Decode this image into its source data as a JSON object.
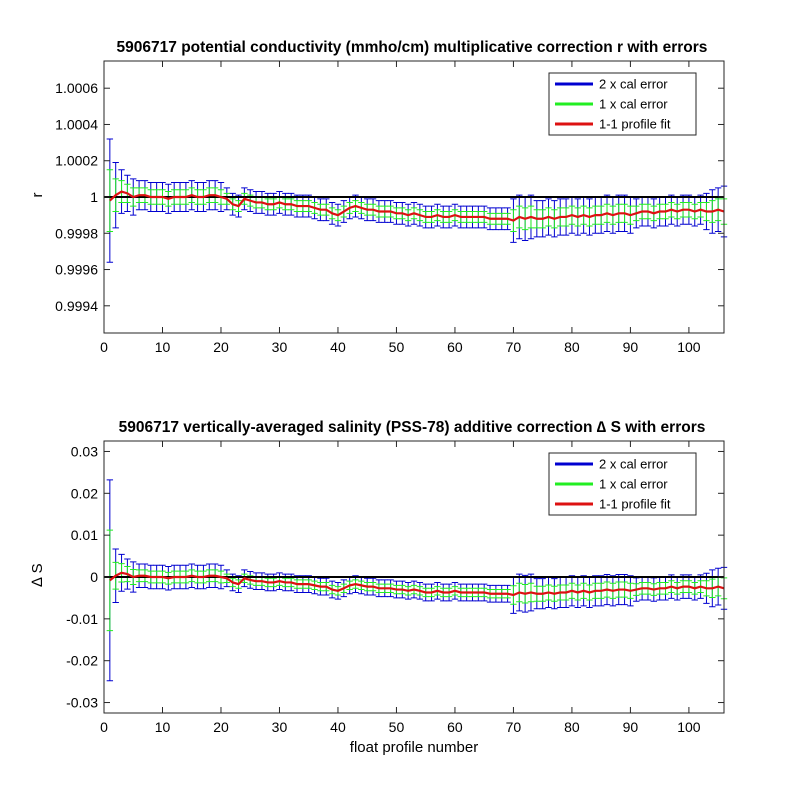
{
  "figure": {
    "xlabel": "float profile number",
    "legend_position": "top-right"
  },
  "chart_data": [
    {
      "type": "line",
      "title": "5906717 potential conductivity (mmho/cm) multiplicative correction r with errors",
      "ylabel": "r",
      "xlabel": "",
      "xlim": [
        0,
        106
      ],
      "ylim": [
        0.99925,
        1.00075
      ],
      "xticks": [
        0,
        10,
        20,
        30,
        40,
        50,
        60,
        70,
        80,
        90,
        100
      ],
      "xtick_labels": [
        "0",
        "10",
        "20",
        "30",
        "40",
        "50",
        "60",
        "70",
        "80",
        "90",
        "100"
      ],
      "yticks": [
        0.9994,
        0.9996,
        0.9998,
        1.0,
        1.0002,
        1.0004,
        1.0006
      ],
      "ytick_labels": [
        "0.9994",
        "0.9996",
        "0.9998",
        "1",
        "1.0002",
        "1.0004",
        "1.0006"
      ],
      "reference_line": 1.0,
      "grid": false,
      "legend": {
        "position": "top-right",
        "entries": [
          {
            "name": "2 x cal error",
            "color": "#0000d0"
          },
          {
            "name": "1 x cal error",
            "color": "#22ee22"
          },
          {
            "name": "1-1 profile fit",
            "color": "#dd1111"
          }
        ]
      },
      "x": [
        1,
        2,
        3,
        4,
        5,
        6,
        7,
        8,
        9,
        10,
        11,
        12,
        13,
        14,
        15,
        16,
        17,
        18,
        19,
        20,
        21,
        22,
        23,
        24,
        25,
        26,
        27,
        28,
        29,
        30,
        31,
        32,
        33,
        34,
        35,
        36,
        37,
        38,
        39,
        40,
        41,
        42,
        43,
        44,
        45,
        46,
        47,
        48,
        49,
        50,
        51,
        52,
        53,
        54,
        55,
        56,
        57,
        58,
        59,
        60,
        61,
        62,
        63,
        64,
        65,
        66,
        67,
        68,
        69,
        70,
        71,
        72,
        73,
        74,
        75,
        76,
        77,
        78,
        79,
        80,
        81,
        82,
        83,
        84,
        85,
        86,
        87,
        88,
        89,
        90,
        91,
        92,
        93,
        94,
        95,
        96,
        97,
        98,
        99,
        100,
        101,
        102,
        103,
        104,
        105,
        106
      ],
      "series": [
        {
          "name": "1-1 profile fit",
          "color": "#dd1111",
          "values": [
            0.99998,
            1.00001,
            1.00003,
            1.00002,
            1.0,
            1.00001,
            1.00001,
            1.0,
            1.0,
            1.0,
            0.99999,
            1.0,
            1.0,
            1.0,
            1.00001,
            1.0,
            1.0,
            1.00001,
            1.00001,
            1.0,
            0.99999,
            0.99996,
            0.99995,
            0.99999,
            0.99998,
            0.99997,
            0.99997,
            0.99996,
            0.99996,
            0.99997,
            0.99996,
            0.99996,
            0.99995,
            0.99995,
            0.99995,
            0.99994,
            0.99993,
            0.99993,
            0.99991,
            0.9999,
            0.99992,
            0.99994,
            0.99995,
            0.99994,
            0.99993,
            0.99993,
            0.99992,
            0.99992,
            0.99992,
            0.99991,
            0.99991,
            0.9999,
            0.99991,
            0.9999,
            0.99989,
            0.99989,
            0.9999,
            0.99989,
            0.99989,
            0.9999,
            0.99989,
            0.99989,
            0.99989,
            0.99989,
            0.99989,
            0.99988,
            0.99988,
            0.99988,
            0.99988,
            0.99987,
            0.99989,
            0.99988,
            0.99989,
            0.99988,
            0.99988,
            0.99989,
            0.99988,
            0.99989,
            0.99989,
            0.9999,
            0.99989,
            0.9999,
            0.99989,
            0.9999,
            0.9999,
            0.99991,
            0.9999,
            0.99991,
            0.99991,
            0.9999,
            0.99991,
            0.99992,
            0.99992,
            0.99991,
            0.99992,
            0.99992,
            0.99993,
            0.99992,
            0.99993,
            0.99993,
            0.99992,
            0.99993,
            0.99992,
            0.99992,
            0.99993,
            0.99992
          ]
        },
        {
          "name": "1 x cal error",
          "color": "#22ee22",
          "values": [
            0.00017,
            9e-05,
            6e-05,
            5e-05,
            5e-05,
            4e-05,
            4e-05,
            4e-05,
            4e-05,
            4e-05,
            4e-05,
            4e-05,
            4e-05,
            4e-05,
            4e-05,
            4e-05,
            4e-05,
            4e-05,
            4e-05,
            4e-05,
            3e-05,
            3e-05,
            3e-05,
            3e-05,
            3e-05,
            3e-05,
            3e-05,
            3e-05,
            3e-05,
            3e-05,
            3e-05,
            3e-05,
            3e-05,
            3e-05,
            3e-05,
            3e-05,
            3e-05,
            3e-05,
            3e-05,
            3e-05,
            3e-05,
            3e-05,
            3e-05,
            3e-05,
            3e-05,
            3e-05,
            3e-05,
            3e-05,
            3e-05,
            3e-05,
            3e-05,
            3e-05,
            3e-05,
            3e-05,
            3e-05,
            3e-05,
            3e-05,
            3e-05,
            3e-05,
            3e-05,
            3e-05,
            3e-05,
            3e-05,
            3e-05,
            3e-05,
            3e-05,
            3e-05,
            3e-05,
            3e-05,
            6e-05,
            6e-05,
            6e-05,
            6e-05,
            5e-05,
            5e-05,
            5e-05,
            5e-05,
            5e-05,
            5e-05,
            5e-05,
            5e-05,
            5e-05,
            5e-05,
            5e-05,
            5e-05,
            5e-05,
            5e-05,
            5e-05,
            5e-05,
            5e-05,
            4e-05,
            4e-05,
            4e-05,
            4e-05,
            4e-05,
            4e-05,
            4e-05,
            4e-05,
            4e-05,
            4e-05,
            4e-05,
            4e-05,
            5e-05,
            6e-05,
            6e-05,
            7e-05
          ]
        },
        {
          "name": "2 x cal error",
          "color": "#0000d0",
          "values": [
            0.00034,
            0.00018,
            0.00012,
            0.0001,
            0.0001,
            8e-05,
            8e-05,
            8e-05,
            8e-05,
            8e-05,
            8e-05,
            8e-05,
            8e-05,
            8e-05,
            8e-05,
            8e-05,
            8e-05,
            8e-05,
            8e-05,
            8e-05,
            6e-05,
            6e-05,
            6e-05,
            6e-05,
            6e-05,
            6e-05,
            6e-05,
            6e-05,
            6e-05,
            6e-05,
            6e-05,
            6e-05,
            6e-05,
            6e-05,
            6e-05,
            6e-05,
            6e-05,
            6e-05,
            6e-05,
            6e-05,
            6e-05,
            6e-05,
            6e-05,
            6e-05,
            6e-05,
            6e-05,
            6e-05,
            6e-05,
            6e-05,
            6e-05,
            6e-05,
            6e-05,
            6e-05,
            6e-05,
            6e-05,
            6e-05,
            6e-05,
            6e-05,
            6e-05,
            6e-05,
            6e-05,
            6e-05,
            6e-05,
            6e-05,
            6e-05,
            6e-05,
            6e-05,
            6e-05,
            6e-05,
            0.00012,
            0.00012,
            0.00012,
            0.00012,
            0.0001,
            0.0001,
            0.0001,
            0.0001,
            0.0001,
            0.0001,
            0.0001,
            0.0001,
            0.0001,
            0.0001,
            0.0001,
            0.0001,
            0.0001,
            0.0001,
            0.0001,
            0.0001,
            0.0001,
            8e-05,
            8e-05,
            8e-05,
            8e-05,
            8e-05,
            8e-05,
            8e-05,
            8e-05,
            8e-05,
            8e-05,
            8e-05,
            8e-05,
            0.0001,
            0.00012,
            0.00012,
            0.00014
          ]
        }
      ]
    },
    {
      "type": "line",
      "title": "5906717 vertically-averaged salinity (PSS-78) additive correction ∆ S with errors",
      "ylabel": "∆ S",
      "xlabel": "float profile number",
      "xlim": [
        0,
        106
      ],
      "ylim": [
        -0.0325,
        0.0325
      ],
      "xticks": [
        0,
        10,
        20,
        30,
        40,
        50,
        60,
        70,
        80,
        90,
        100
      ],
      "xtick_labels": [
        "0",
        "10",
        "20",
        "30",
        "40",
        "50",
        "60",
        "70",
        "80",
        "90",
        "100"
      ],
      "yticks": [
        -0.03,
        -0.02,
        -0.01,
        0,
        0.01,
        0.02,
        0.03
      ],
      "ytick_labels": [
        "-0.03",
        "-0.02",
        "-0.01",
        "0",
        "0.01",
        "0.02",
        "0.03"
      ],
      "reference_line": 0,
      "grid": false,
      "legend": {
        "position": "top-right",
        "entries": [
          {
            "name": "2 x cal error",
            "color": "#0000d0"
          },
          {
            "name": "1 x cal error",
            "color": "#22ee22"
          },
          {
            "name": "1-1 profile fit",
            "color": "#dd1111"
          }
        ]
      },
      "x": [
        1,
        2,
        3,
        4,
        5,
        6,
        7,
        8,
        9,
        10,
        11,
        12,
        13,
        14,
        15,
        16,
        17,
        18,
        19,
        20,
        21,
        22,
        23,
        24,
        25,
        26,
        27,
        28,
        29,
        30,
        31,
        32,
        33,
        34,
        35,
        36,
        37,
        38,
        39,
        40,
        41,
        42,
        43,
        44,
        45,
        46,
        47,
        48,
        49,
        50,
        51,
        52,
        53,
        54,
        55,
        56,
        57,
        58,
        59,
        60,
        61,
        62,
        63,
        64,
        65,
        66,
        67,
        68,
        69,
        70,
        71,
        72,
        73,
        74,
        75,
        76,
        77,
        78,
        79,
        80,
        81,
        82,
        83,
        84,
        85,
        86,
        87,
        88,
        89,
        90,
        91,
        92,
        93,
        94,
        95,
        96,
        97,
        98,
        99,
        100,
        101,
        102,
        103,
        104,
        105,
        106
      ],
      "series": [
        {
          "name": "1-1 profile fit",
          "color": "#dd1111",
          "values": [
            -0.0008,
            0.0003,
            0.001,
            0.0007,
            0.0,
            0.0003,
            0.0003,
            0.0,
            0.0,
            0.0,
            -0.0003,
            0.0,
            0.0,
            0.0,
            0.0003,
            0.0,
            0.0,
            0.0003,
            0.0003,
            0.0,
            -0.0003,
            -0.0013,
            -0.0017,
            -0.0003,
            -0.0007,
            -0.001,
            -0.001,
            -0.0013,
            -0.0013,
            -0.001,
            -0.0013,
            -0.0013,
            -0.0017,
            -0.0017,
            -0.0017,
            -0.002,
            -0.0023,
            -0.0023,
            -0.003,
            -0.0033,
            -0.0027,
            -0.002,
            -0.0017,
            -0.002,
            -0.0023,
            -0.0023,
            -0.0027,
            -0.0027,
            -0.0027,
            -0.003,
            -0.003,
            -0.0033,
            -0.003,
            -0.0033,
            -0.0037,
            -0.0037,
            -0.0033,
            -0.0037,
            -0.0037,
            -0.0033,
            -0.0037,
            -0.0037,
            -0.0037,
            -0.0037,
            -0.0037,
            -0.004,
            -0.004,
            -0.004,
            -0.004,
            -0.0043,
            -0.0037,
            -0.004,
            -0.0037,
            -0.004,
            -0.004,
            -0.0037,
            -0.004,
            -0.0037,
            -0.0037,
            -0.0033,
            -0.0037,
            -0.0033,
            -0.0037,
            -0.0033,
            -0.0033,
            -0.003,
            -0.0033,
            -0.003,
            -0.003,
            -0.0033,
            -0.003,
            -0.0027,
            -0.0027,
            -0.003,
            -0.0027,
            -0.0027,
            -0.0023,
            -0.0027,
            -0.0023,
            -0.0023,
            -0.0027,
            -0.0023,
            -0.0027,
            -0.0027,
            -0.0023,
            -0.0027
          ]
        },
        {
          "name": "1 x cal error",
          "color": "#22ee22",
          "values": [
            0.012,
            0.0032,
            0.0022,
            0.0018,
            0.0018,
            0.0014,
            0.0014,
            0.0014,
            0.0014,
            0.0014,
            0.0014,
            0.0014,
            0.0014,
            0.0014,
            0.0014,
            0.0014,
            0.0014,
            0.0014,
            0.0014,
            0.0014,
            0.001,
            0.001,
            0.001,
            0.001,
            0.001,
            0.001,
            0.001,
            0.001,
            0.001,
            0.001,
            0.001,
            0.001,
            0.001,
            0.001,
            0.001,
            0.001,
            0.001,
            0.001,
            0.001,
            0.001,
            0.001,
            0.001,
            0.001,
            0.001,
            0.001,
            0.001,
            0.001,
            0.001,
            0.001,
            0.001,
            0.001,
            0.001,
            0.001,
            0.001,
            0.001,
            0.001,
            0.001,
            0.001,
            0.001,
            0.001,
            0.001,
            0.001,
            0.001,
            0.001,
            0.001,
            0.001,
            0.001,
            0.001,
            0.001,
            0.0022,
            0.0022,
            0.0022,
            0.0022,
            0.0018,
            0.0018,
            0.0018,
            0.0018,
            0.0018,
            0.0018,
            0.0018,
            0.0018,
            0.0018,
            0.0018,
            0.0018,
            0.0018,
            0.0018,
            0.0018,
            0.0018,
            0.0018,
            0.0018,
            0.0014,
            0.0014,
            0.0014,
            0.0014,
            0.0014,
            0.0014,
            0.0014,
            0.0014,
            0.0014,
            0.0014,
            0.0014,
            0.0014,
            0.0018,
            0.0022,
            0.0022,
            0.0025
          ]
        },
        {
          "name": "2 x cal error",
          "color": "#0000d0",
          "values": [
            0.024,
            0.0064,
            0.0044,
            0.0036,
            0.0036,
            0.0028,
            0.0028,
            0.0028,
            0.0028,
            0.0028,
            0.0028,
            0.0028,
            0.0028,
            0.0028,
            0.0028,
            0.0028,
            0.0028,
            0.0028,
            0.0028,
            0.0028,
            0.002,
            0.002,
            0.002,
            0.002,
            0.002,
            0.002,
            0.002,
            0.002,
            0.002,
            0.002,
            0.002,
            0.002,
            0.002,
            0.002,
            0.002,
            0.002,
            0.002,
            0.002,
            0.002,
            0.002,
            0.002,
            0.002,
            0.002,
            0.002,
            0.002,
            0.002,
            0.002,
            0.002,
            0.002,
            0.002,
            0.002,
            0.002,
            0.002,
            0.002,
            0.002,
            0.002,
            0.002,
            0.002,
            0.002,
            0.002,
            0.002,
            0.002,
            0.002,
            0.002,
            0.002,
            0.002,
            0.002,
            0.002,
            0.002,
            0.0044,
            0.0044,
            0.0044,
            0.0044,
            0.0036,
            0.0036,
            0.0036,
            0.0036,
            0.0036,
            0.0036,
            0.0036,
            0.0036,
            0.0036,
            0.0036,
            0.0036,
            0.0036,
            0.0036,
            0.0036,
            0.0036,
            0.0036,
            0.0036,
            0.0028,
            0.0028,
            0.0028,
            0.0028,
            0.0028,
            0.0028,
            0.0028,
            0.0028,
            0.0028,
            0.0028,
            0.0028,
            0.0028,
            0.0036,
            0.0044,
            0.0044,
            0.005
          ]
        }
      ]
    }
  ]
}
